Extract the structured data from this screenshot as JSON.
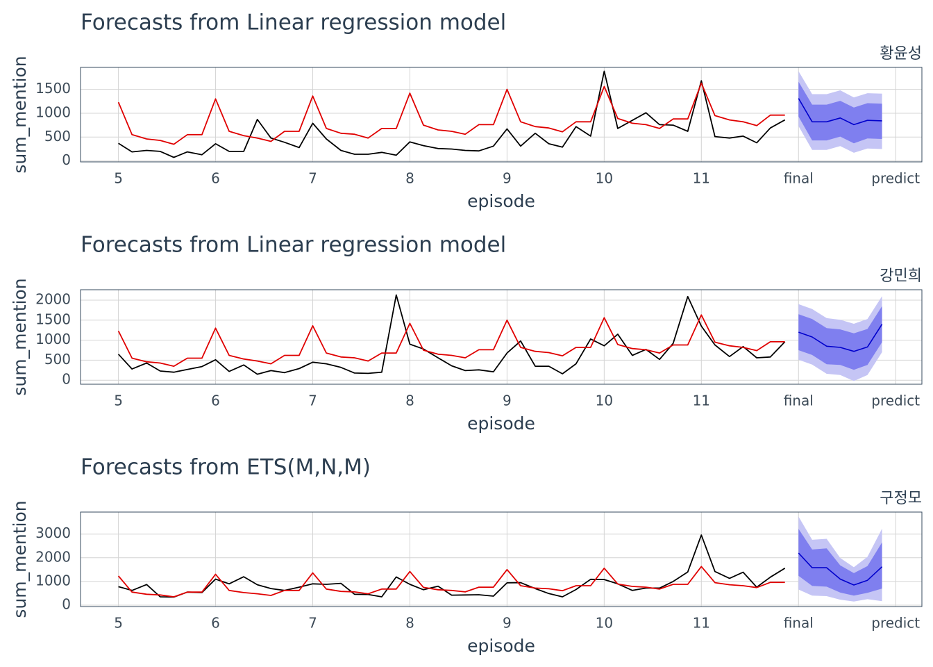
{
  "chart_data": [
    {
      "type": "line",
      "title": "Forecasts from Linear regression model",
      "subtitle": "황윤성",
      "xlabel": "episode",
      "ylabel": "sum_mention",
      "x": [
        5,
        5.14,
        5.29,
        5.43,
        5.57,
        5.71,
        5.86,
        6,
        6.14,
        6.29,
        6.43,
        6.57,
        6.71,
        6.86,
        7,
        7.14,
        7.29,
        7.43,
        7.57,
        7.71,
        7.86,
        8,
        8.14,
        8.29,
        8.43,
        8.57,
        8.71,
        8.86,
        9,
        9.14,
        9.29,
        9.43,
        9.57,
        9.71,
        9.86,
        10,
        10.14,
        10.29,
        10.43,
        10.57,
        10.71,
        10.86,
        11,
        11.14,
        11.29,
        11.43,
        11.57,
        11.71,
        11.86
      ],
      "series": [
        {
          "color": "#000000",
          "values": [
            370,
            190,
            220,
            200,
            75,
            190,
            130,
            360,
            200,
            200,
            870,
            480,
            390,
            280,
            790,
            460,
            220,
            140,
            140,
            180,
            120,
            400,
            320,
            260,
            250,
            220,
            210,
            310,
            670,
            310,
            580,
            360,
            290,
            720,
            520,
            1880,
            680,
            850,
            1010,
            760,
            750,
            620,
            1680,
            510,
            480,
            520,
            380,
            690,
            860
          ]
        },
        {
          "color": "#e00000",
          "values": [
            1230,
            550,
            460,
            430,
            350,
            550,
            550,
            1300,
            620,
            530,
            480,
            410,
            620,
            620,
            1360,
            680,
            580,
            560,
            480,
            680,
            680,
            1420,
            750,
            650,
            620,
            560,
            760,
            760,
            1500,
            820,
            720,
            690,
            610,
            820,
            820,
            1560,
            890,
            790,
            760,
            680,
            880,
            880,
            1630,
            950,
            860,
            820,
            740,
            960,
            960
          ]
        }
      ],
      "forecast": {
        "x": [
          12,
          12.14,
          12.29,
          12.43,
          12.57,
          12.71,
          12.86
        ],
        "color": "#0000cc",
        "color80": "#7f7fef",
        "color95": "#c5c5f5",
        "mean": [
          1310,
          820,
          820,
          900,
          760,
          850,
          840
        ],
        "lo80": [
          930,
          430,
          430,
          510,
          370,
          470,
          460
        ],
        "hi80": [
          1660,
          1180,
          1180,
          1260,
          1120,
          1210,
          1200
        ],
        "lo95": [
          730,
          230,
          230,
          310,
          170,
          260,
          250
        ],
        "hi95": [
          1880,
          1400,
          1400,
          1480,
          1330,
          1420,
          1410
        ]
      },
      "xlim": [
        4.61,
        13.27
      ],
      "xticks": [
        5,
        6,
        7,
        8,
        9,
        10,
        11,
        {
          "value": 12,
          "label": "final"
        },
        {
          "value": 13,
          "label": "predict"
        }
      ],
      "ylim": [
        -20,
        1960
      ],
      "yticks": [
        0,
        500,
        1000,
        1500
      ],
      "grid": true
    },
    {
      "type": "line",
      "title": "Forecasts from Linear regression model",
      "subtitle": "강민희",
      "xlabel": "episode",
      "ylabel": "sum_mention",
      "x": [
        5,
        5.14,
        5.29,
        5.43,
        5.57,
        5.71,
        5.86,
        6,
        6.14,
        6.29,
        6.43,
        6.57,
        6.71,
        6.86,
        7,
        7.14,
        7.29,
        7.43,
        7.57,
        7.71,
        7.86,
        8,
        8.14,
        8.29,
        8.43,
        8.57,
        8.71,
        8.86,
        9,
        9.14,
        9.29,
        9.43,
        9.57,
        9.71,
        9.86,
        10,
        10.14,
        10.29,
        10.43,
        10.57,
        10.71,
        10.86,
        11,
        11.14,
        11.29,
        11.43,
        11.57,
        11.71,
        11.86
      ],
      "series": [
        {
          "color": "#000000",
          "values": [
            650,
            280,
            430,
            230,
            200,
            270,
            340,
            510,
            220,
            380,
            150,
            240,
            190,
            290,
            450,
            410,
            320,
            180,
            170,
            200,
            2130,
            900,
            780,
            560,
            360,
            240,
            260,
            210,
            680,
            980,
            350,
            350,
            160,
            410,
            1030,
            860,
            1150,
            620,
            770,
            520,
            920,
            2090,
            1350,
            880,
            590,
            840,
            560,
            580,
            960
          ]
        },
        {
          "color": "#e00000",
          "values": [
            1230,
            550,
            460,
            430,
            350,
            550,
            550,
            1300,
            620,
            530,
            480,
            410,
            620,
            620,
            1360,
            680,
            580,
            560,
            480,
            680,
            680,
            1420,
            750,
            650,
            620,
            560,
            760,
            760,
            1500,
            820,
            720,
            690,
            610,
            820,
            820,
            1560,
            890,
            790,
            760,
            680,
            880,
            880,
            1630,
            950,
            860,
            820,
            740,
            960,
            960
          ]
        }
      ],
      "forecast": {
        "x": [
          12,
          12.14,
          12.29,
          12.43,
          12.57,
          12.71,
          12.86
        ],
        "color": "#0000cc",
        "color80": "#7f7fef",
        "color95": "#c5c5f5",
        "mean": [
          1200,
          1080,
          850,
          820,
          720,
          830,
          1400
        ],
        "lo80": [
          750,
          630,
          400,
          380,
          260,
          380,
          950
        ],
        "hi80": [
          1650,
          1530,
          1300,
          1270,
          1170,
          1280,
          1850
        ],
        "lo95": [
          510,
          390,
          160,
          130,
          -20,
          130,
          700
        ],
        "hi95": [
          1900,
          1780,
          1550,
          1510,
          1410,
          1530,
          2100
        ]
      },
      "xlim": [
        4.61,
        13.27
      ],
      "xticks": [
        5,
        6,
        7,
        8,
        9,
        10,
        11,
        {
          "value": 12,
          "label": "final"
        },
        {
          "value": 13,
          "label": "predict"
        }
      ],
      "ylim": [
        -100,
        2260
      ],
      "yticks": [
        0,
        500,
        1000,
        1500,
        2000
      ],
      "grid": true
    },
    {
      "type": "line",
      "title": "Forecasts from ETS(M,N,M)",
      "subtitle": "구정모",
      "xlabel": "episode",
      "ylabel": "sum_mention",
      "x": [
        5,
        5.14,
        5.29,
        5.43,
        5.57,
        5.71,
        5.86,
        6,
        6.14,
        6.29,
        6.43,
        6.57,
        6.71,
        6.86,
        7,
        7.14,
        7.29,
        7.43,
        7.57,
        7.71,
        7.86,
        8,
        8.14,
        8.29,
        8.43,
        8.57,
        8.71,
        8.86,
        9,
        9.14,
        9.29,
        9.43,
        9.57,
        9.71,
        9.86,
        10,
        10.14,
        10.29,
        10.43,
        10.57,
        10.71,
        10.86,
        11,
        11.14,
        11.29,
        11.43,
        11.57,
        11.71,
        11.86
      ],
      "series": [
        {
          "color": "#000000",
          "values": [
            780,
            620,
            870,
            350,
            340,
            550,
            530,
            1100,
            900,
            1200,
            860,
            700,
            620,
            760,
            900,
            880,
            920,
            460,
            450,
            350,
            1190,
            880,
            650,
            800,
            420,
            430,
            440,
            380,
            940,
            950,
            700,
            490,
            350,
            660,
            1090,
            1080,
            900,
            620,
            720,
            720,
            1000,
            1400,
            2960,
            1420,
            1130,
            1390,
            760,
            1180,
            1560
          ]
        },
        {
          "color": "#e00000",
          "values": [
            1230,
            550,
            460,
            430,
            350,
            550,
            550,
            1300,
            620,
            530,
            480,
            410,
            620,
            620,
            1360,
            680,
            580,
            560,
            480,
            680,
            680,
            1420,
            750,
            650,
            620,
            560,
            760,
            760,
            1500,
            820,
            720,
            690,
            610,
            820,
            820,
            1560,
            890,
            790,
            760,
            680,
            880,
            880,
            1630,
            950,
            860,
            820,
            740,
            960,
            960
          ]
        }
      ],
      "forecast": {
        "x": [
          12,
          12.14,
          12.29,
          12.43,
          12.57,
          12.71,
          12.86
        ],
        "color": "#0000cc",
        "color80": "#7f7fef",
        "color95": "#c5c5f5",
        "mean": [
          2200,
          1580,
          1580,
          1100,
          850,
          1050,
          1620
        ],
        "lo80": [
          1240,
          810,
          780,
          530,
          400,
          520,
          700
        ],
        "hi80": [
          3220,
          2350,
          2400,
          1680,
          1350,
          1650,
          2650
        ],
        "lo95": [
          660,
          400,
          380,
          230,
          150,
          250,
          170
        ],
        "hi95": [
          3740,
          2760,
          2800,
          1990,
          1600,
          2040,
          3230
        ]
      },
      "xlim": [
        4.61,
        13.27
      ],
      "xticks": [
        5,
        6,
        7,
        8,
        9,
        10,
        11,
        {
          "value": 12,
          "label": "final"
        },
        {
          "value": 13,
          "label": "predict"
        }
      ],
      "ylim": [
        -60,
        3930
      ],
      "yticks": [
        0,
        1000,
        2000,
        3000
      ],
      "grid": true
    }
  ]
}
